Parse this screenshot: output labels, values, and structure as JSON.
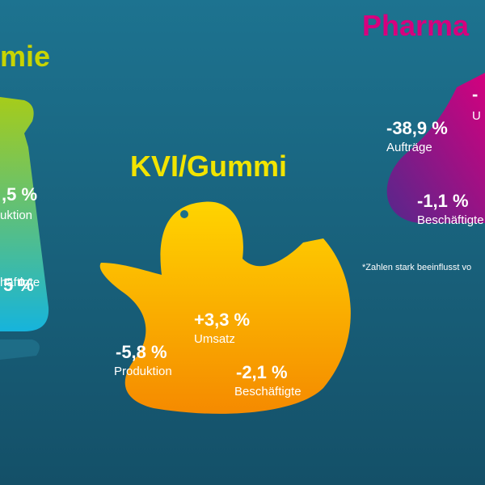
{
  "chemie": {
    "title": "mie",
    "stat1": {
      "value": ",5 %",
      "label": "uktion"
    },
    "stat2": {
      "value": "5 %",
      "label": "häftigte"
    }
  },
  "kvi": {
    "title": "KVI/Gummi",
    "umsatz": {
      "value": "+3,3 %",
      "label": "Umsatz"
    },
    "produktion": {
      "value": "-5,8 %",
      "label": "Produktion"
    },
    "beschaeftigte": {
      "value": "-2,1 %",
      "label": "Beschäftigte"
    }
  },
  "pharma": {
    "title": "Pharma",
    "top": {
      "value": "-",
      "label": "U"
    },
    "auftraege": {
      "value": "-38,9 %",
      "label": "Aufträge"
    },
    "beschaeftigte": {
      "value": "-1,1 %",
      "label": "Beschäftigte"
    },
    "note": "*Zahlen stark beeinflusst vo"
  }
}
